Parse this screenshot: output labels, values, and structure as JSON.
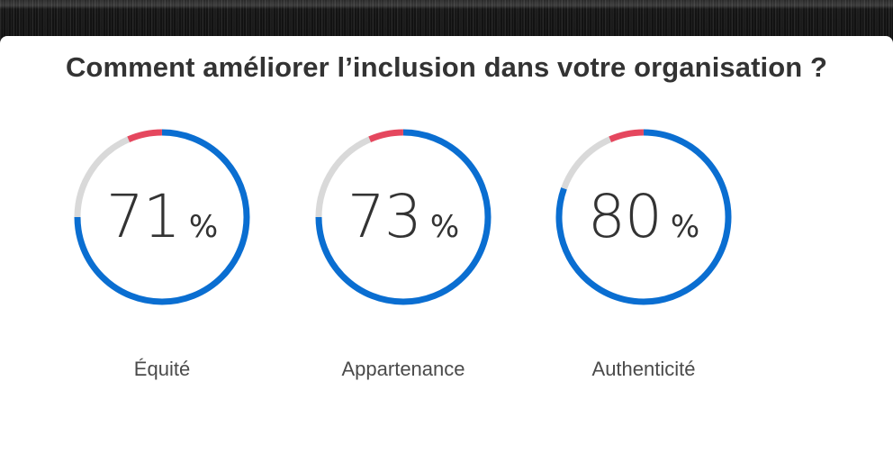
{
  "title": "Comment améliorer l’inclusion dans votre organisation ?",
  "colors": {
    "positive": "#0a6ed1",
    "neutral": "#d9d9d9",
    "negative": "#e5475e",
    "text": "#333333",
    "label": "#4a4a4a"
  },
  "gauges": [
    {
      "label": "Équité",
      "value": "71",
      "unit": "%"
    },
    {
      "label": "Appartenance",
      "value": "73",
      "unit": "%"
    },
    {
      "label": "Authenticité",
      "value": "80",
      "unit": "%"
    }
  ],
  "chart_data": {
    "type": "pie",
    "subtype": "donut-gauges",
    "title": "Comment améliorer l’inclusion dans votre organisation ?",
    "categories": [
      "Équité",
      "Appartenance",
      "Authenticité"
    ],
    "values": [
      71,
      73,
      80
    ],
    "unit": "%",
    "arc_segments_fraction_of_ring": [
      {
        "category": "Équité",
        "blue": 0.75,
        "gray": 0.185,
        "red": 0.065
      },
      {
        "category": "Appartenance",
        "blue": 0.75,
        "gray": 0.185,
        "red": 0.065
      },
      {
        "category": "Authenticité",
        "blue": 0.805,
        "gray": 0.13,
        "red": 0.065
      }
    ],
    "segment_colors": {
      "blue": "#0a6ed1",
      "gray": "#d9d9d9",
      "red": "#e5475e"
    },
    "start_angle": "12 o'clock, clockwise",
    "legend": "none"
  }
}
